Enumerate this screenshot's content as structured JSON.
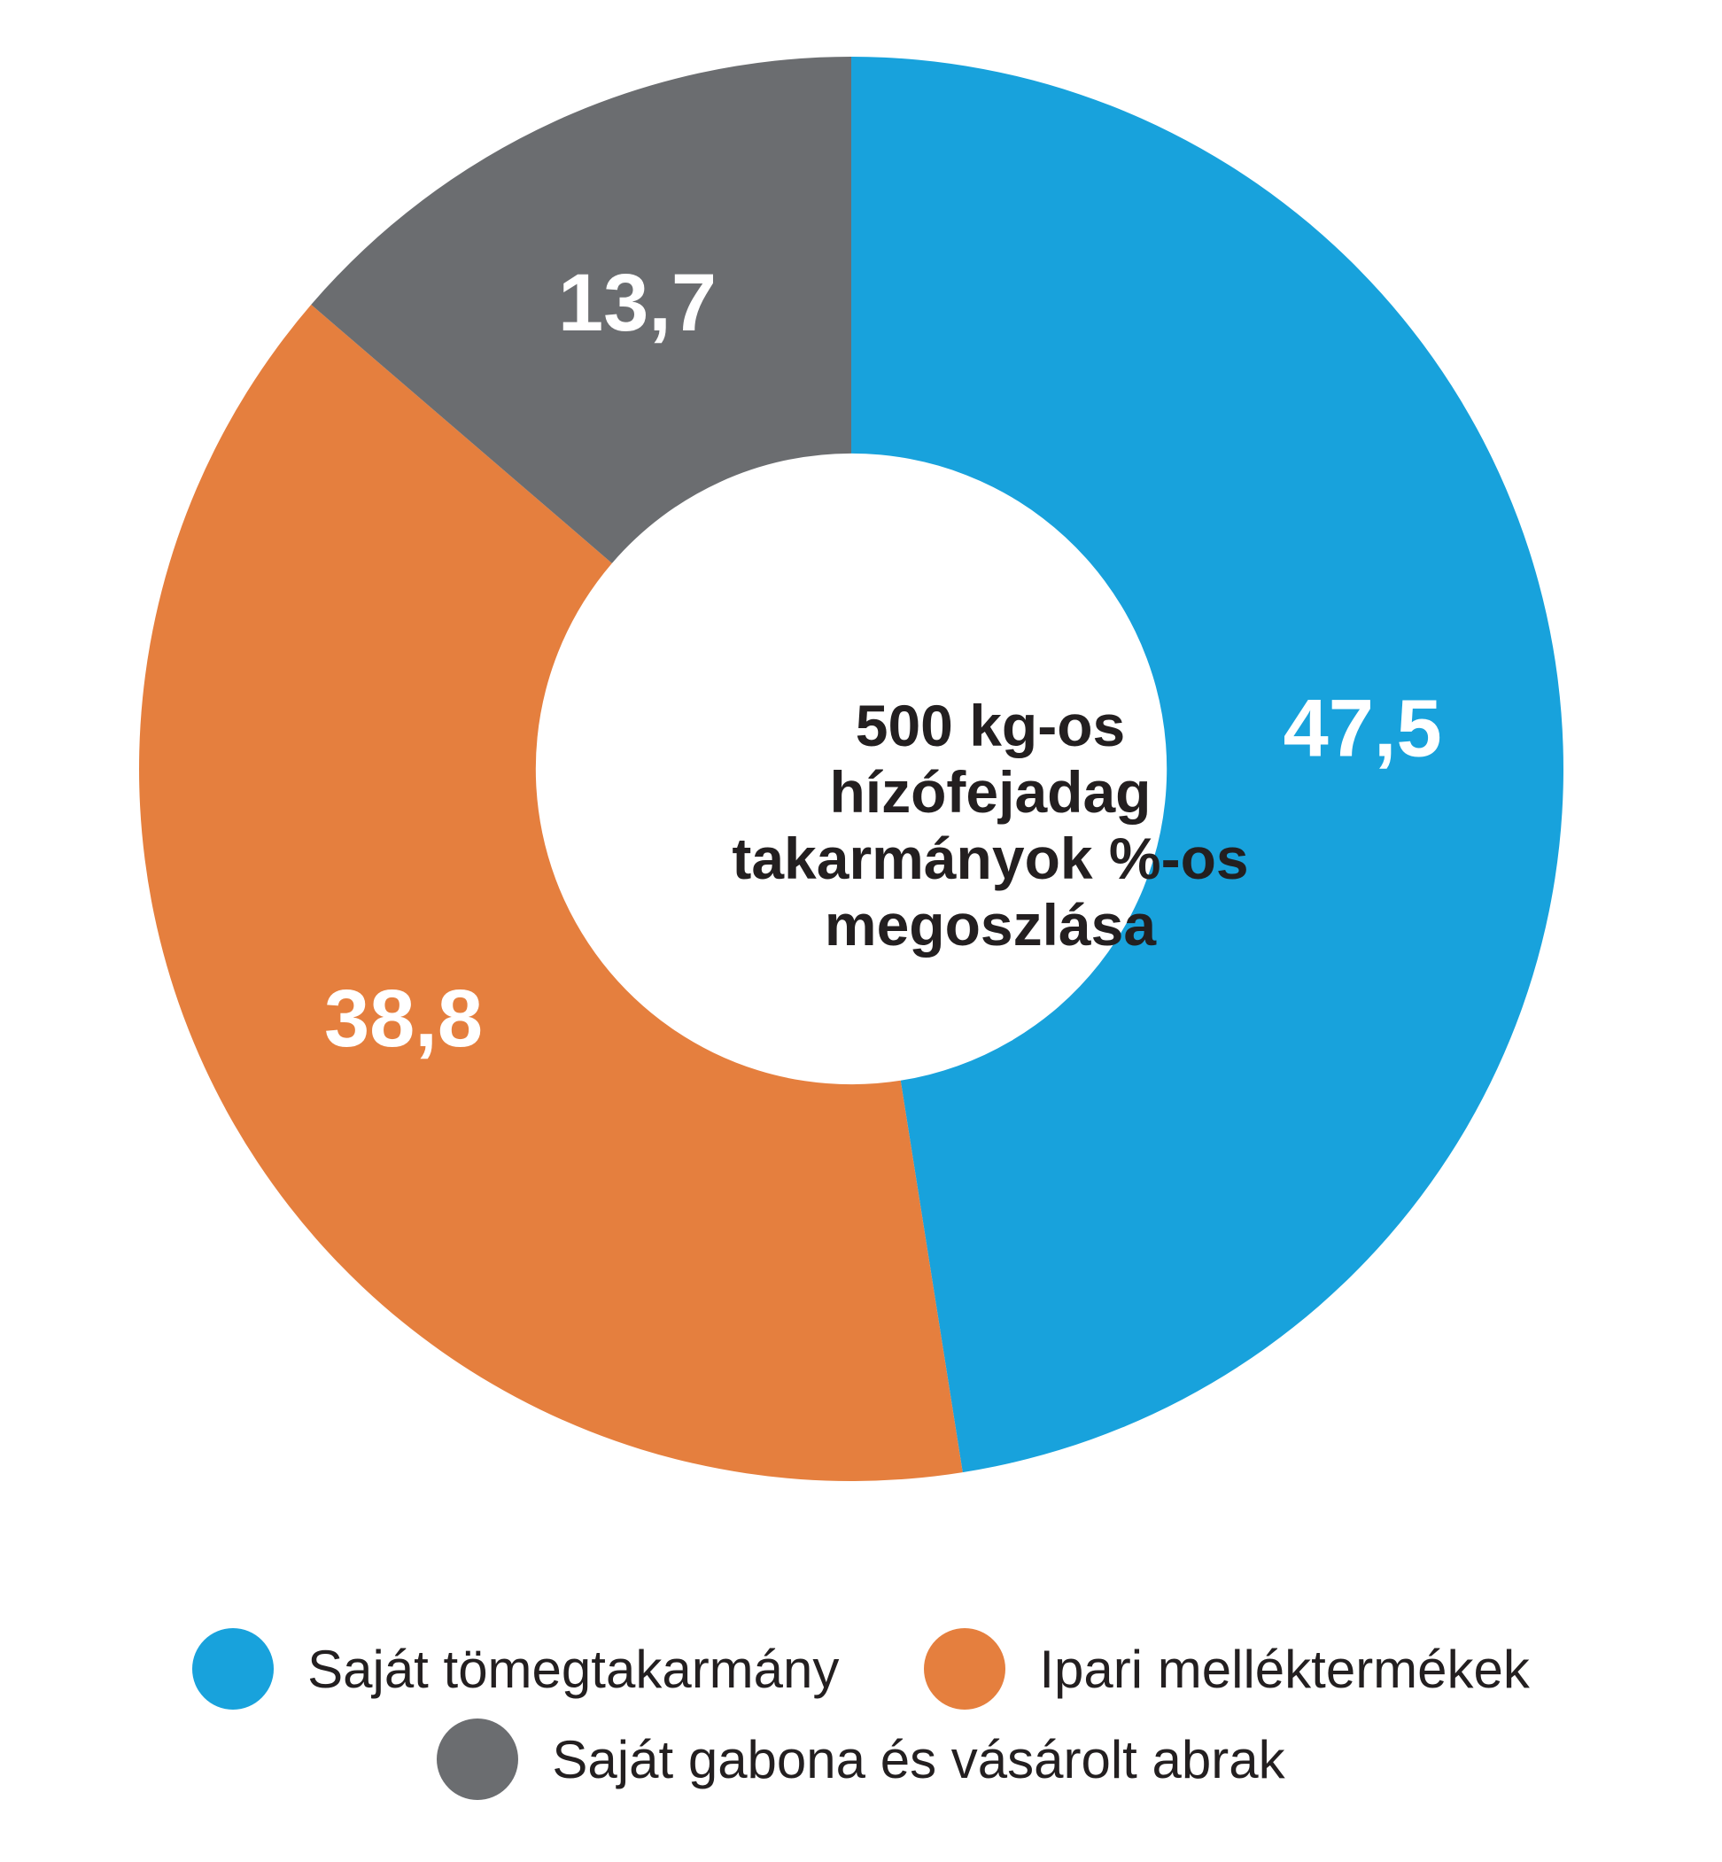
{
  "chart_data": {
    "type": "pie",
    "donut": true,
    "inner_radius_fraction": 0.443,
    "label_radius_fraction": 0.72,
    "start_angle_deg": 0,
    "direction": "clockwise",
    "title_lines": [
      "500 kg-os",
      "hízófejadag",
      "takarmányok %-os",
      "megoszlása"
    ],
    "segments": [
      {
        "label": "Saját tömegtakarmány",
        "value": 47.5,
        "display": "47,5",
        "color": "#18A2DC"
      },
      {
        "label": "Ipari melléktermékek",
        "value": 38.8,
        "display": "38,8",
        "color": "#E57F3E"
      },
      {
        "label": "Saját gabona és vásárolt abrak",
        "value": 13.7,
        "display": "13,7",
        "color": "#6B6D70"
      }
    ],
    "value_label_color": "#ffffff",
    "legend_position": "bottom",
    "grid": false
  }
}
